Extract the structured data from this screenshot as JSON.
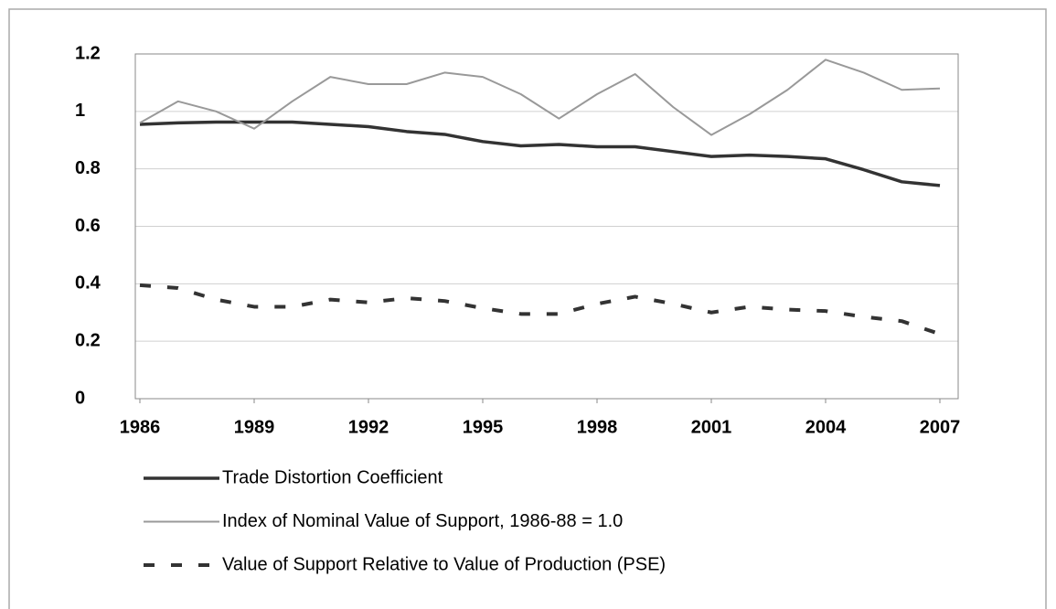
{
  "chart_data": {
    "type": "line",
    "x": [
      1986,
      1987,
      1988,
      1989,
      1990,
      1991,
      1992,
      1993,
      1994,
      1995,
      1996,
      1997,
      1998,
      1999,
      2000,
      2001,
      2002,
      2003,
      2004,
      2005,
      2006,
      2007
    ],
    "series": [
      {
        "name": "Trade Distortion Coefficient",
        "color": "#333333",
        "style": "solid",
        "values": [
          0.955,
          0.96,
          0.963,
          0.963,
          0.963,
          0.955,
          0.947,
          0.93,
          0.92,
          0.895,
          0.88,
          0.885,
          0.877,
          0.877,
          0.86,
          0.843,
          0.848,
          0.843,
          0.835,
          0.797,
          0.755,
          0.742
        ]
      },
      {
        "name": "Index of Nominal Value of Support, 1986-88 = 1.0",
        "color": "#999999",
        "style": "solid",
        "values": [
          0.96,
          1.035,
          1.0,
          0.94,
          1.035,
          1.12,
          1.095,
          1.095,
          1.135,
          1.12,
          1.06,
          0.975,
          1.06,
          1.13,
          1.015,
          0.918,
          0.99,
          1.075,
          1.18,
          1.135,
          1.075,
          1.08
        ]
      },
      {
        "name": "Value of Support Relative to Value of Production (PSE)",
        "color": "#333333",
        "style": "dashed",
        "values": [
          0.395,
          0.385,
          0.345,
          0.32,
          0.32,
          0.345,
          0.335,
          0.35,
          0.34,
          0.315,
          0.295,
          0.295,
          0.33,
          0.355,
          0.33,
          0.3,
          0.32,
          0.31,
          0.305,
          0.285,
          0.27,
          0.225
        ]
      }
    ],
    "xlim": [
      1985.88,
      2007.48
    ],
    "xticks": [
      1986,
      1989,
      1992,
      1995,
      1998,
      2001,
      2004,
      2007
    ],
    "ylim": [
      0,
      1.2
    ],
    "yticks": [
      0,
      0.2,
      0.4,
      0.6,
      0.8,
      1,
      1.2
    ],
    "grid": true
  }
}
